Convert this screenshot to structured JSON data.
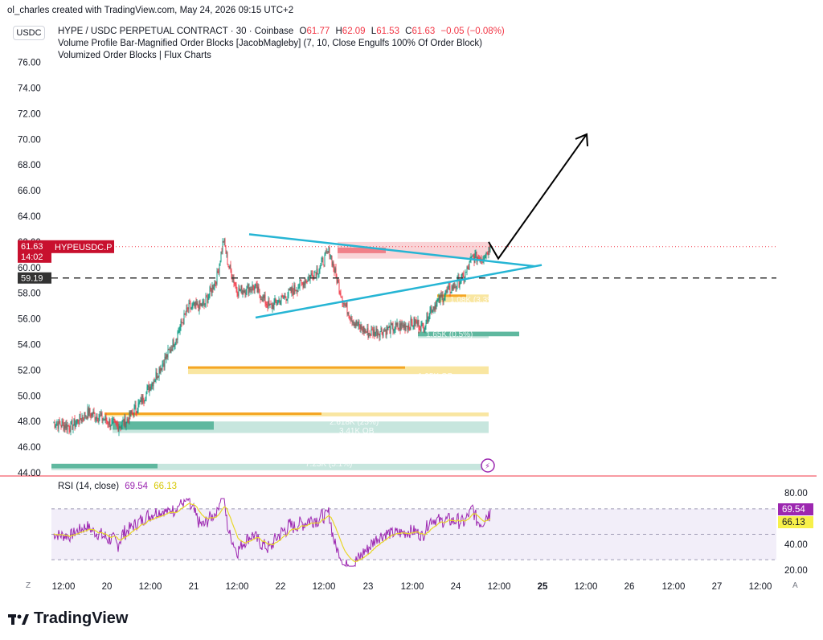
{
  "header": {
    "snapshot_text": "ol_charles created with TradingView.com, May 24, 2026 09:15 UTC+2",
    "quote_currency": "USDC"
  },
  "legend": {
    "symbol_title": "HYPE / USDC PERPETUAL CONTRACT · 30 · Coinbase",
    "open_label": "O",
    "open": "61.77",
    "high_label": "H",
    "high": "62.09",
    "low_label": "L",
    "low": "61.53",
    "close_label": "C",
    "close": "61.63",
    "change": "−0.05 (−0.08%)",
    "indicator_1": "Volume Profile Bar-Magnified Order Blocks [JacobMagleby] (7, 10, Close Engulfs 100% Of Order Block)",
    "indicator_2": "Volumized Order Blocks | Flux Charts"
  },
  "price_badges": {
    "last_price": "61.63",
    "countdown": "14:02",
    "symbol_tag": "HYPEUSDC.P",
    "level_price": "59.19"
  },
  "ob_labels": [
    "2.618K (25%)",
    "3.41K OB",
    "1.65K (0.5%)",
    "1.95K OB",
    "1.08K (3.3%)",
    "7.23K (5.1%)"
  ],
  "rsi": {
    "title": "RSI (14, close)",
    "value": "69.54",
    "ma_value": "66.13",
    "axis_ticks": [
      "80.00",
      "40.00",
      "20.00"
    ]
  },
  "time_axis": {
    "timezone_button": "Z",
    "auto_button": "A",
    "labels": [
      "12:00",
      "20",
      "12:00",
      "21",
      "12:00",
      "22",
      "12:00",
      "23",
      "12:00",
      "24",
      "12:00",
      "25",
      "12:00",
      "26",
      "12:00",
      "27",
      "12:00"
    ]
  },
  "footer": {
    "brand": "TradingView"
  },
  "colors": {
    "up": "#089981",
    "down": "#f23645",
    "trendline": "#26b5d4",
    "rsi_line": "#9c27b0",
    "rsi_ma": "#e8d72a",
    "arrow": "#000000"
  },
  "chart_data": {
    "type": "candlestick",
    "symbol": "HYPEUSDC.P",
    "timeframe": "30",
    "y_ticks": [
      44,
      46,
      48,
      50,
      52,
      54,
      56,
      58,
      60,
      62,
      64,
      66,
      68,
      70,
      72,
      74,
      76
    ],
    "ylim": [
      43.9,
      77.5
    ],
    "path_anchors": [
      [
        0,
        47.9
      ],
      [
        22,
        47.6
      ],
      [
        44,
        48.7
      ],
      [
        66,
        48.1
      ],
      [
        80,
        47.6
      ],
      [
        92,
        48.1
      ],
      [
        108,
        49.4
      ],
      [
        130,
        51.8
      ],
      [
        146,
        53.6
      ],
      [
        168,
        56.8
      ],
      [
        188,
        57.1
      ],
      [
        204,
        59.3
      ],
      [
        212,
        62.2
      ],
      [
        218,
        60.2
      ],
      [
        230,
        58.2
      ],
      [
        250,
        58.5
      ],
      [
        270,
        56.9
      ],
      [
        290,
        57.8
      ],
      [
        312,
        58.9
      ],
      [
        330,
        59.9
      ],
      [
        344,
        61.3
      ],
      [
        352,
        59.3
      ],
      [
        362,
        57.2
      ],
      [
        376,
        55.6
      ],
      [
        392,
        54.9
      ],
      [
        410,
        55.1
      ],
      [
        432,
        55.4
      ],
      [
        452,
        55.7
      ],
      [
        460,
        55.3
      ],
      [
        470,
        56.8
      ],
      [
        486,
        57.8
      ],
      [
        498,
        58.5
      ],
      [
        512,
        59.3
      ],
      [
        522,
        60.8
      ],
      [
        534,
        60.8
      ],
      [
        544,
        61.6
      ]
    ],
    "last_price": 61.63,
    "level_line": 59.19,
    "trendlines": [
      {
        "name": "upper",
        "from": [
          0,
          62.6
        ],
        "to": [
          354,
          60.1
        ]
      },
      {
        "name": "lower",
        "from": [
          0,
          56.1
        ],
        "to": [
          354,
          60.2
        ]
      }
    ],
    "projection_arrow": {
      "from": [
        554,
        60.7
      ],
      "via": [
        544,
        62.0
      ],
      "to": [
        676,
        70.4
      ]
    },
    "order_blocks": [
      {
        "kind": "bearish",
        "top": 62.0,
        "bottom": 60.7
      },
      {
        "kind": "bullish",
        "top": 57.9,
        "bottom": 57.3
      },
      {
        "kind": "bullish",
        "top": 55.0,
        "bottom": 54.5
      },
      {
        "kind": "bullish",
        "top": 52.3,
        "bottom": 51.7
      },
      {
        "kind": "bullish",
        "top": 48.7,
        "bottom": 48.4
      },
      {
        "kind": "bullish",
        "top": 48.0,
        "bottom": 47.1
      },
      {
        "kind": "bullish",
        "top": 44.7,
        "bottom": 44.2
      }
    ],
    "rsi": {
      "upper_band": 70,
      "lower_band": 30,
      "ylim": [
        20,
        80
      ],
      "last": 69.54,
      "ma_last": 66.13
    }
  }
}
